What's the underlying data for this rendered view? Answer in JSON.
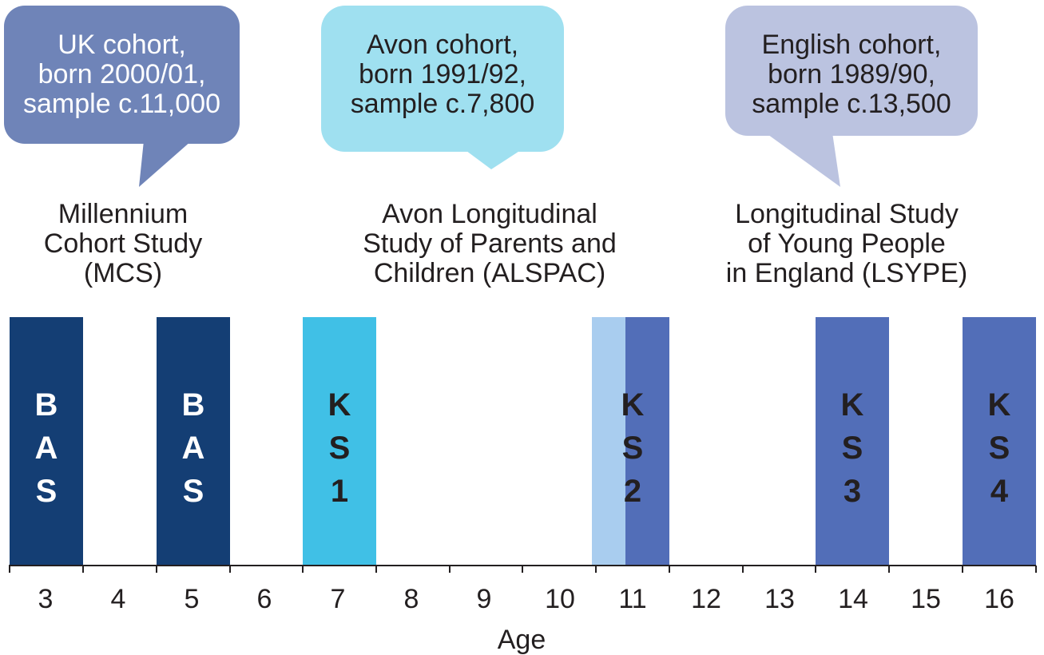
{
  "cohorts": [
    {
      "bubble_text": "UK cohort,\nborn 2000/01,\nsample c.11,000",
      "study_name": "Millennium\nCohort Study\n(MCS)",
      "color": "#6f84b8"
    },
    {
      "bubble_text": "Avon cohort,\nborn 1991/92,\nsample c.7,800",
      "study_name": "Avon Longitudinal\nStudy of Parents and\nChildren (ALSPAC)",
      "color": "#9fe0f0"
    },
    {
      "bubble_text": "English cohort,\nborn 1989/90,\nsample c.13,500",
      "study_name": "Longitudinal Study\nof Young People\nin England (LSYPE)",
      "color": "#bbc3e0"
    }
  ],
  "assessments": [
    {
      "letters": "B\nA\nS",
      "age": 3,
      "color": "#143e74",
      "text_color": "#ffffff"
    },
    {
      "letters": "B\nA\nS",
      "age": 5,
      "color": "#143e74",
      "text_color": "#ffffff"
    },
    {
      "letters": "K\nS\n1",
      "age": 7,
      "color": "#40c0e6",
      "text_color": "#231f20"
    },
    {
      "letters": "K\nS\n2",
      "age": 11,
      "color": "#526eb8",
      "lead_color": "#a9cdef",
      "text_color": "#231f20"
    },
    {
      "letters": "K\nS\n3",
      "age": 14,
      "color": "#526eb8",
      "text_color": "#231f20"
    },
    {
      "letters": "K\nS\n4",
      "age": 16,
      "color": "#526eb8",
      "text_color": "#231f20"
    }
  ],
  "axis": {
    "title": "Age",
    "ticks": [
      3,
      4,
      5,
      6,
      7,
      8,
      9,
      10,
      11,
      12,
      13,
      14,
      15,
      16
    ]
  }
}
